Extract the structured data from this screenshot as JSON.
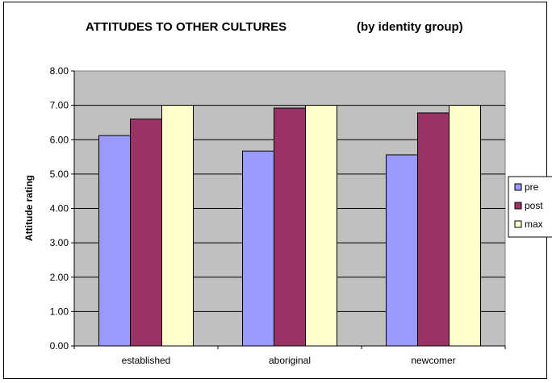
{
  "chart_data": {
    "type": "bar",
    "title": "ATTITUDES TO OTHER CULTURES",
    "subtitle": "(by identity group)",
    "xlabel": "",
    "ylabel": "Attitude rating",
    "categories": [
      "established",
      "aboriginal",
      "newcomer"
    ],
    "series": [
      {
        "name": "pre",
        "values": [
          6.12,
          5.67,
          5.56
        ],
        "color": "#9999ff"
      },
      {
        "name": "post",
        "values": [
          6.6,
          6.92,
          6.78
        ],
        "color": "#993366"
      },
      {
        "name": "max",
        "values": [
          7.0,
          7.0,
          7.0
        ],
        "color": "#ffffcc"
      }
    ],
    "ylim": [
      0,
      8
    ],
    "yticks": [
      "0.00",
      "1.00",
      "2.00",
      "3.00",
      "4.00",
      "5.00",
      "6.00",
      "7.00",
      "8.00"
    ],
    "grid": true,
    "plot_background": "#c0c0c0",
    "legend_position": "right"
  }
}
